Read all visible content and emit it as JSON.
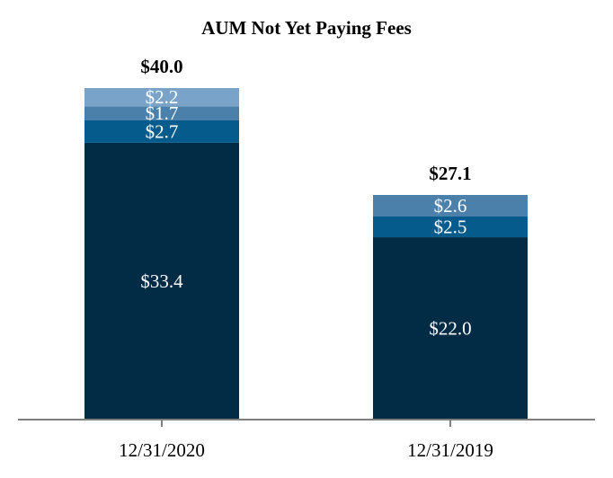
{
  "chart_data": {
    "type": "bar",
    "stacked": true,
    "title": "AUM Not Yet Paying Fees",
    "categories": [
      "12/31/2020",
      "12/31/2019"
    ],
    "stacks": [
      {
        "category": "12/31/2020",
        "total_label": "$40.0",
        "total": 40.0,
        "segments": [
          {
            "value": 33.4,
            "label": "$33.4",
            "color": "#022b45"
          },
          {
            "value": 2.7,
            "label": "$2.7",
            "color": "#055b8c"
          },
          {
            "value": 1.7,
            "label": "$1.7",
            "color": "#4a80aa"
          },
          {
            "value": 2.2,
            "label": "$2.2",
            "color": "#79a3c8"
          }
        ]
      },
      {
        "category": "12/31/2019",
        "total_label": "$27.1",
        "total": 27.1,
        "segments": [
          {
            "value": 22.0,
            "label": "$22.0",
            "color": "#022b45"
          },
          {
            "value": 2.5,
            "label": "$2.5",
            "color": "#055b8c"
          },
          {
            "value": 2.6,
            "label": "$2.6",
            "color": "#4a80aa"
          }
        ]
      }
    ],
    "ylim": [
      0,
      40.0
    ],
    "grid": false,
    "axis_color": "#7f7f7f"
  }
}
